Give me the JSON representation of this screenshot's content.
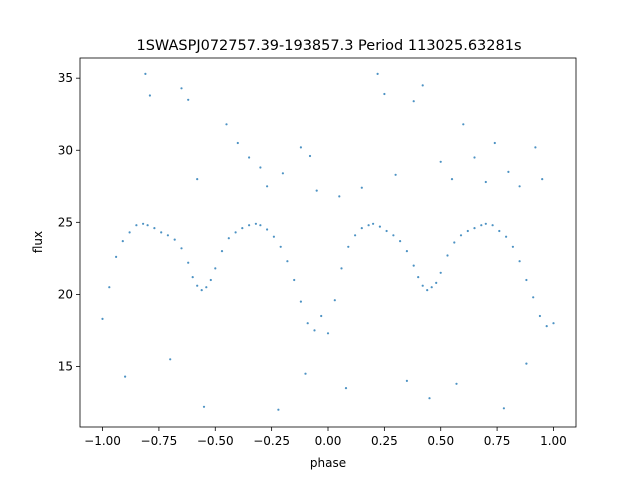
{
  "chart_data": {
    "type": "scatter",
    "title": "1SWASPJ072757.39-193857.3 Period 113025.63281s",
    "xlabel": "phase",
    "ylabel": "flux",
    "xlim": [
      -1.1,
      1.1
    ],
    "ylim": [
      10.8,
      36.4
    ],
    "x_ticks": [
      -1.0,
      -0.75,
      -0.5,
      -0.25,
      0.0,
      0.25,
      0.5,
      0.75,
      1.0
    ],
    "x_tick_labels": [
      "−1.00",
      "−0.75",
      "−0.50",
      "−0.25",
      "0.00",
      "0.25",
      "0.50",
      "0.75",
      "1.00"
    ],
    "y_ticks": [
      15,
      20,
      25,
      30,
      35
    ],
    "y_tick_labels": [
      "15",
      "20",
      "25",
      "30",
      "35"
    ],
    "grid": false,
    "marker_color": "#1f77b4",
    "series": [
      {
        "x": [
          -1.0,
          -0.97,
          -0.94,
          -0.91,
          -0.88,
          -0.85,
          -0.82,
          -0.8,
          -0.77,
          -0.74,
          -0.71,
          -0.68,
          -0.65,
          -0.62,
          -0.6,
          -0.58,
          -0.56,
          -0.54,
          -0.52,
          -0.5,
          -0.47,
          -0.44,
          -0.41,
          -0.38,
          -0.35,
          -0.32,
          -0.3,
          -0.27,
          -0.24,
          -0.21,
          -0.18,
          -0.15,
          -0.12,
          -0.09,
          -0.06,
          -0.03,
          0.0,
          0.03,
          0.06,
          0.09,
          0.12,
          0.15,
          0.18,
          0.2,
          0.23,
          0.26,
          0.29,
          0.32,
          0.35,
          0.38,
          0.4,
          0.42,
          0.44,
          0.46,
          0.48,
          0.5,
          0.53,
          0.56,
          0.59,
          0.62,
          0.65,
          0.68,
          0.7,
          0.73,
          0.76,
          0.79,
          0.82,
          0.85,
          0.88,
          0.91,
          0.94,
          0.97,
          1.0
        ],
        "y": [
          18.3,
          20.5,
          22.6,
          23.7,
          24.3,
          24.8,
          24.9,
          24.8,
          24.6,
          24.3,
          24.1,
          23.8,
          23.2,
          22.2,
          21.2,
          20.6,
          20.3,
          20.5,
          21.0,
          21.8,
          23.0,
          23.9,
          24.3,
          24.6,
          24.8,
          24.9,
          24.8,
          24.5,
          24.0,
          23.3,
          22.3,
          21.0,
          19.5,
          18.0,
          17.5,
          18.5,
          17.3,
          19.6,
          21.8,
          23.3,
          24.1,
          24.6,
          24.8,
          24.9,
          24.7,
          24.4,
          24.1,
          23.7,
          23.0,
          22.0,
          21.2,
          20.6,
          20.3,
          20.5,
          20.8,
          21.5,
          22.7,
          23.6,
          24.1,
          24.4,
          24.6,
          24.8,
          24.9,
          24.8,
          24.4,
          24.0,
          23.3,
          22.3,
          21.0,
          19.8,
          18.5,
          17.8,
          18.0
        ]
      }
    ],
    "outliers": {
      "x": [
        -0.81,
        -0.79,
        -0.65,
        -0.62,
        -0.58,
        -0.45,
        -0.4,
        -0.35,
        -0.3,
        -0.27,
        -0.2,
        -0.12,
        -0.08,
        -0.05,
        0.05,
        0.15,
        0.22,
        0.25,
        0.3,
        0.38,
        0.42,
        0.5,
        0.55,
        0.6,
        0.65,
        0.7,
        0.74,
        0.8,
        0.85,
        0.92,
        0.95,
        -0.9,
        -0.7,
        -0.55,
        -0.22,
        -0.1,
        0.08,
        0.35,
        0.45,
        0.57,
        0.78,
        0.88
      ],
      "y": [
        35.3,
        33.8,
        34.3,
        33.5,
        28.0,
        31.8,
        30.5,
        29.5,
        28.8,
        27.5,
        28.4,
        30.2,
        29.6,
        27.2,
        26.8,
        27.4,
        35.3,
        33.9,
        28.3,
        33.4,
        34.5,
        29.2,
        28.0,
        31.8,
        29.5,
        27.8,
        30.5,
        28.5,
        27.5,
        30.2,
        28.0,
        14.3,
        15.5,
        12.2,
        12.0,
        14.5,
        13.5,
        14.0,
        12.8,
        13.8,
        12.1,
        15.2
      ]
    }
  }
}
